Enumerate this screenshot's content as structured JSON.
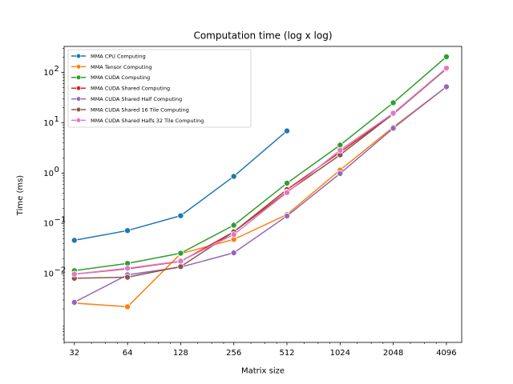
{
  "chart_data": {
    "type": "line",
    "title": "Computation time (log x log)",
    "xlabel": "Matrix size",
    "ylabel": "Time (ms)",
    "x_scale": "log2",
    "y_scale": "log10",
    "x": [
      32,
      64,
      128,
      256,
      512,
      1024,
      2048,
      4096
    ],
    "x_tick_labels": [
      "32",
      "64",
      "128",
      "256",
      "512",
      "1024",
      "2048",
      "4096"
    ],
    "xlim": [
      28,
      5000
    ],
    "ylim": [
      0.00043,
      330
    ],
    "y_ticks": [
      0.01,
      0.1,
      1,
      10,
      100
    ],
    "y_tick_labels": [
      "10",
      "10",
      "10",
      "10",
      "10"
    ],
    "y_tick_exponents": [
      "−2",
      "−1",
      "0",
      "1",
      "2"
    ],
    "grid": false,
    "legend_position": "upper-left",
    "series": [
      {
        "name": "MMA CPU Computing",
        "color": "#1f77b4",
        "values": [
          0.046,
          0.072,
          0.142,
          0.86,
          6.9,
          null,
          null,
          null
        ]
      },
      {
        "name": "MMA Tensor Computing",
        "color": "#ff7f0e",
        "values": [
          0.0026,
          0.0022,
          0.025,
          0.048,
          0.15,
          1.15,
          8.2,
          52
        ]
      },
      {
        "name": "MMA CUDA Computing",
        "color": "#2ca02c",
        "values": [
          0.0115,
          0.016,
          0.0255,
          0.092,
          0.63,
          3.6,
          25,
          205
        ]
      },
      {
        "name": "MMA CUDA Shared Computing",
        "color": "#d62728",
        "values": [
          0.0098,
          0.0125,
          0.0175,
          0.068,
          0.47,
          2.6,
          15,
          120
        ]
      },
      {
        "name": "MMA CUDA Shared Half Computing",
        "color": "#9467bd",
        "values": [
          0.0027,
          0.0095,
          0.0135,
          0.026,
          0.14,
          0.98,
          7.8,
          52
        ]
      },
      {
        "name": "MMA CUDA Shared 16 Tile Computing",
        "color": "#8c564b",
        "values": [
          0.0081,
          0.0085,
          0.0138,
          0.068,
          0.42,
          2.3,
          15,
          118
        ]
      },
      {
        "name": "MMA CUDA Shared Halfs 32 Tile Computing",
        "color": "#e377c2",
        "values": [
          0.0098,
          0.0128,
          0.0178,
          0.06,
          0.41,
          2.85,
          15.5,
          122
        ]
      }
    ]
  }
}
